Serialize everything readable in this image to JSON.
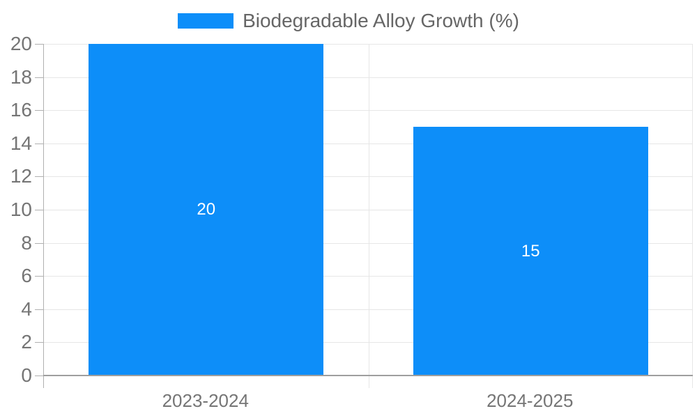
{
  "chart_data": {
    "type": "bar",
    "title": "",
    "legend": {
      "position": "top",
      "label": "Biodegradable Alloy Growth (%)"
    },
    "categories": [
      "2023-2024",
      "2024-2025"
    ],
    "series": [
      {
        "name": "Biodegradable Alloy Growth (%)",
        "color": "#0d8ef9",
        "values": [
          20,
          15
        ]
      }
    ],
    "data_labels": [
      "20",
      "15"
    ],
    "xlabel": "",
    "ylabel": "",
    "ylim": [
      0,
      20
    ],
    "yticks": [
      0,
      2,
      4,
      6,
      8,
      10,
      12,
      14,
      16,
      18,
      20
    ],
    "grid": true,
    "colors": {
      "bar": "#0d8ef9",
      "bar_label_text": "#ffffff",
      "axis_text": "#757575",
      "legend_text": "#666666",
      "gridline": "#e6e6e6",
      "axis_line": "#9e9e9e",
      "tick": "#b0b0b0",
      "background": "#ffffff"
    }
  }
}
